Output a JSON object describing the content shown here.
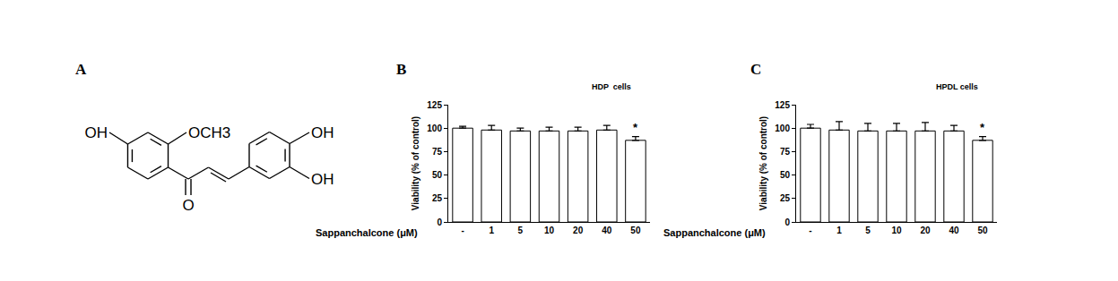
{
  "panel_labels": [
    "A",
    "B",
    "C"
  ],
  "structure": {
    "labels": [
      "OH",
      "OCH3",
      "O",
      "OH",
      "OH"
    ]
  },
  "chart_data": [
    {
      "type": "bar",
      "title": "HDP  cells",
      "x_label": "Sappanchalcone (μM)",
      "y_label": "Viability (% of control)",
      "categories": [
        "-",
        "1",
        "5",
        "10",
        "20",
        "40",
        "50"
      ],
      "values": [
        100,
        98,
        97,
        97,
        97,
        98,
        87
      ],
      "errors": [
        2,
        5,
        3,
        4,
        4,
        5,
        4
      ],
      "color": "#ffffff",
      "ylim": [
        0,
        125
      ],
      "yticks": [
        0,
        25,
        50,
        75,
        100,
        125
      ],
      "grid": false,
      "annotations": [
        {
          "category": "50",
          "text": "*"
        }
      ]
    },
    {
      "type": "bar",
      "title": "HPDL cells",
      "x_label": "Sappanchalcone (μM)",
      "y_label": "Viability (% of control)",
      "categories": [
        "-",
        "1",
        "5",
        "10",
        "20",
        "40",
        "50"
      ],
      "values": [
        100,
        98,
        97,
        97,
        97,
        97,
        87
      ],
      "errors": [
        4,
        9,
        8,
        8,
        9,
        6,
        4
      ],
      "color": "#ffffff",
      "ylim": [
        0,
        125
      ],
      "yticks": [
        0,
        25,
        50,
        75,
        100,
        125
      ],
      "grid": false,
      "annotations": [
        {
          "category": "50",
          "text": "*"
        }
      ]
    }
  ]
}
